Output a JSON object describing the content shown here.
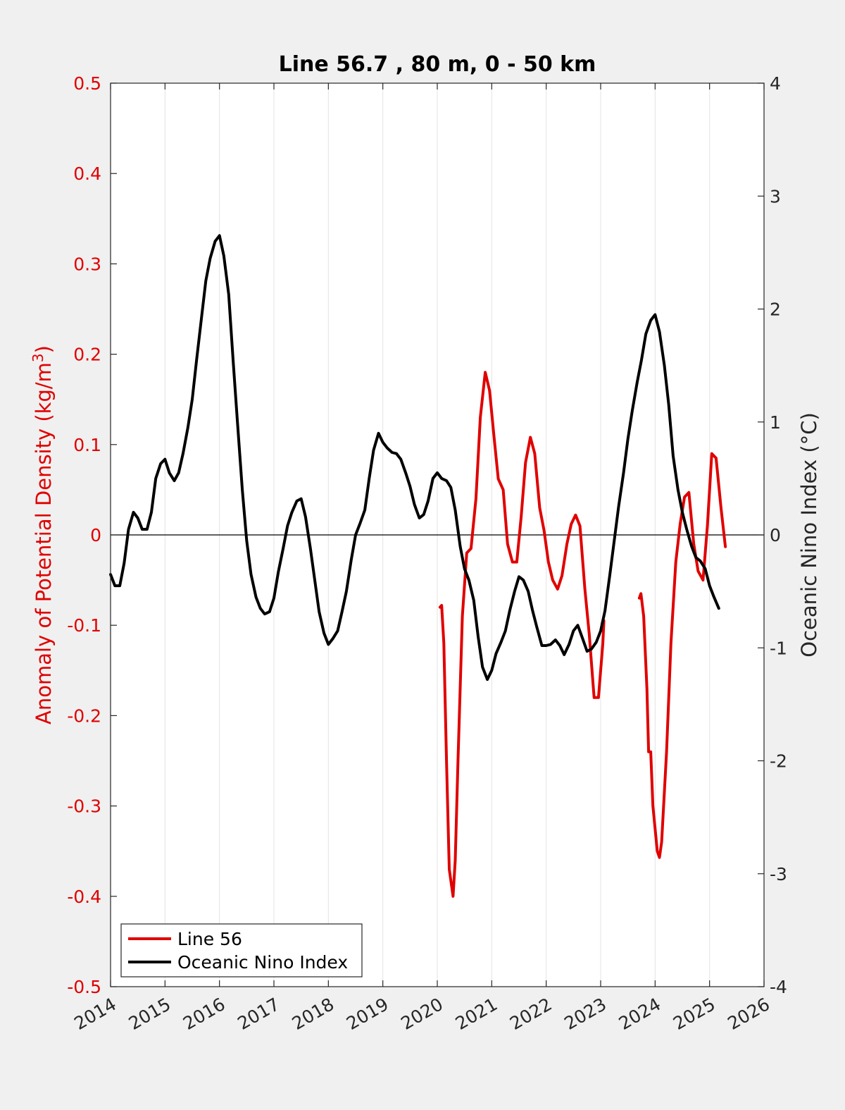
{
  "chart_data": {
    "type": "line",
    "title": "Line 56.7 , 80 m, 0 - 50 km",
    "ylabel_left": {
      "prefix": "Anomaly of Potential Density (kg/m",
      "sup": "3",
      "suffix": ")"
    },
    "ylabel_right": "Oceanic Nino Index (°C)",
    "xlim": [
      2014,
      2026
    ],
    "ylim_left": [
      -0.5,
      0.5
    ],
    "ylim_right": [
      -4,
      4
    ],
    "x_ticks": [
      2014,
      2015,
      2016,
      2017,
      2018,
      2019,
      2020,
      2021,
      2022,
      2023,
      2024,
      2025,
      2026
    ],
    "x_tick_labels": [
      "2014",
      "2015",
      "2016",
      "2017",
      "2018",
      "2019",
      "2020",
      "2021",
      "2022",
      "2023",
      "2024",
      "2025",
      "2026"
    ],
    "y_ticks_left": [
      0.5,
      0.4,
      0.3,
      0.2,
      0.1,
      0,
      -0.1,
      -0.2,
      -0.3,
      -0.4,
      -0.5
    ],
    "y_tick_labels_left": [
      "0.5",
      "0.4",
      "0.3",
      "0.2",
      "0.1",
      "0",
      "-0.1",
      "-0.2",
      "-0.3",
      "-0.4",
      "-0.5"
    ],
    "y_ticks_right": [
      4,
      3,
      2,
      1,
      0,
      -1,
      -2,
      -3,
      -4
    ],
    "y_tick_labels_right": [
      "4",
      "3",
      "2",
      "1",
      "0",
      "-1",
      "-2",
      "-3",
      "-4"
    ],
    "grid": "vertical",
    "zero_line": true,
    "legend_position": "bottom-left",
    "colors": {
      "line56": "#e00000",
      "oni": "#000000",
      "left_axis": "#e00000",
      "background": "#f0f0f0",
      "plot_bg": "#ffffff"
    },
    "series": [
      {
        "name": "Line 56",
        "axis": "left",
        "segments": [
          [
            [
              2020.05,
              -0.08
            ],
            [
              2020.08,
              -0.078
            ],
            [
              2020.12,
              -0.12
            ],
            [
              2020.17,
              -0.25
            ],
            [
              2020.22,
              -0.37
            ],
            [
              2020.29,
              -0.4
            ],
            [
              2020.33,
              -0.36
            ],
            [
              2020.38,
              -0.25
            ],
            [
              2020.46,
              -0.09
            ],
            [
              2020.54,
              -0.02
            ],
            [
              2020.62,
              -0.015
            ],
            [
              2020.71,
              0.04
            ],
            [
              2020.79,
              0.13
            ],
            [
              2020.88,
              0.18
            ],
            [
              2020.96,
              0.16
            ],
            [
              2021.04,
              0.11
            ],
            [
              2021.12,
              0.062
            ],
            [
              2021.21,
              0.05
            ],
            [
              2021.29,
              -0.01
            ],
            [
              2021.38,
              -0.03
            ],
            [
              2021.46,
              -0.03
            ],
            [
              2021.54,
              0.02
            ],
            [
              2021.62,
              0.08
            ],
            [
              2021.71,
              0.108
            ],
            [
              2021.79,
              0.09
            ],
            [
              2021.88,
              0.03
            ],
            [
              2021.96,
              0.005
            ],
            [
              2022.04,
              -0.03
            ],
            [
              2022.12,
              -0.05
            ],
            [
              2022.21,
              -0.06
            ],
            [
              2022.29,
              -0.045
            ],
            [
              2022.38,
              -0.01
            ],
            [
              2022.46,
              0.012
            ],
            [
              2022.54,
              0.022
            ],
            [
              2022.62,
              0.01
            ],
            [
              2022.71,
              -0.06
            ],
            [
              2022.79,
              -0.11
            ],
            [
              2022.88,
              -0.18
            ],
            [
              2022.96,
              -0.18
            ],
            [
              2023.04,
              -0.12
            ],
            [
              2023.06,
              -0.095
            ]
          ],
          [
            [
              2023.71,
              -0.07
            ],
            [
              2023.74,
              -0.065
            ],
            [
              2023.79,
              -0.09
            ],
            [
              2023.85,
              -0.17
            ],
            [
              2023.88,
              -0.24
            ],
            [
              2023.92,
              -0.24
            ],
            [
              2023.96,
              -0.3
            ],
            [
              2024.04,
              -0.35
            ],
            [
              2024.08,
              -0.357
            ],
            [
              2024.12,
              -0.34
            ],
            [
              2024.21,
              -0.24
            ],
            [
              2024.29,
              -0.12
            ],
            [
              2024.38,
              -0.03
            ],
            [
              2024.46,
              0.012
            ],
            [
              2024.54,
              0.042
            ],
            [
              2024.62,
              0.047
            ],
            [
              2024.71,
              -0.01
            ],
            [
              2024.79,
              -0.04
            ],
            [
              2024.88,
              -0.05
            ],
            [
              2024.96,
              0.01
            ],
            [
              2025.04,
              0.09
            ],
            [
              2025.12,
              0.085
            ],
            [
              2025.21,
              0.03
            ],
            [
              2025.29,
              -0.013
            ]
          ]
        ]
      },
      {
        "name": "Oceanic Nino Index",
        "axis": "right",
        "segments": [
          [
            [
              2014.0,
              -0.35
            ],
            [
              2014.08,
              -0.45
            ],
            [
              2014.17,
              -0.45
            ],
            [
              2014.25,
              -0.25
            ],
            [
              2014.33,
              0.05
            ],
            [
              2014.42,
              0.2
            ],
            [
              2014.5,
              0.15
            ],
            [
              2014.58,
              0.05
            ],
            [
              2014.67,
              0.05
            ],
            [
              2014.75,
              0.2
            ],
            [
              2014.83,
              0.5
            ],
            [
              2014.92,
              0.63
            ],
            [
              2015.0,
              0.67
            ],
            [
              2015.08,
              0.55
            ],
            [
              2015.17,
              0.48
            ],
            [
              2015.25,
              0.55
            ],
            [
              2015.33,
              0.72
            ],
            [
              2015.42,
              0.95
            ],
            [
              2015.5,
              1.2
            ],
            [
              2015.58,
              1.55
            ],
            [
              2015.67,
              1.92
            ],
            [
              2015.75,
              2.25
            ],
            [
              2015.83,
              2.45
            ],
            [
              2015.92,
              2.6
            ],
            [
              2016.0,
              2.65
            ],
            [
              2016.08,
              2.47
            ],
            [
              2016.17,
              2.13
            ],
            [
              2016.25,
              1.55
            ],
            [
              2016.33,
              1.0
            ],
            [
              2016.42,
              0.4
            ],
            [
              2016.5,
              -0.05
            ],
            [
              2016.58,
              -0.35
            ],
            [
              2016.67,
              -0.55
            ],
            [
              2016.75,
              -0.65
            ],
            [
              2016.83,
              -0.7
            ],
            [
              2016.92,
              -0.68
            ],
            [
              2017.0,
              -0.56
            ],
            [
              2017.08,
              -0.33
            ],
            [
              2017.17,
              -0.12
            ],
            [
              2017.25,
              0.08
            ],
            [
              2017.33,
              0.2
            ],
            [
              2017.42,
              0.3
            ],
            [
              2017.5,
              0.32
            ],
            [
              2017.58,
              0.16
            ],
            [
              2017.67,
              -0.12
            ],
            [
              2017.75,
              -0.4
            ],
            [
              2017.83,
              -0.68
            ],
            [
              2017.92,
              -0.87
            ],
            [
              2018.0,
              -0.97
            ],
            [
              2018.08,
              -0.92
            ],
            [
              2018.17,
              -0.85
            ],
            [
              2018.25,
              -0.68
            ],
            [
              2018.33,
              -0.5
            ],
            [
              2018.42,
              -0.22
            ],
            [
              2018.5,
              0.0
            ],
            [
              2018.58,
              0.1
            ],
            [
              2018.67,
              0.22
            ],
            [
              2018.75,
              0.5
            ],
            [
              2018.83,
              0.75
            ],
            [
              2018.92,
              0.9
            ],
            [
              2019.0,
              0.82
            ],
            [
              2019.08,
              0.77
            ],
            [
              2019.17,
              0.73
            ],
            [
              2019.25,
              0.72
            ],
            [
              2019.33,
              0.67
            ],
            [
              2019.42,
              0.55
            ],
            [
              2019.5,
              0.43
            ],
            [
              2019.58,
              0.27
            ],
            [
              2019.67,
              0.15
            ],
            [
              2019.75,
              0.18
            ],
            [
              2019.83,
              0.3
            ],
            [
              2019.92,
              0.5
            ],
            [
              2020.0,
              0.55
            ],
            [
              2020.08,
              0.5
            ],
            [
              2020.17,
              0.48
            ],
            [
              2020.25,
              0.42
            ],
            [
              2020.33,
              0.22
            ],
            [
              2020.42,
              -0.1
            ],
            [
              2020.5,
              -0.3
            ],
            [
              2020.58,
              -0.4
            ],
            [
              2020.67,
              -0.58
            ],
            [
              2020.75,
              -0.9
            ],
            [
              2020.83,
              -1.17
            ],
            [
              2020.92,
              -1.28
            ],
            [
              2021.0,
              -1.2
            ],
            [
              2021.08,
              -1.05
            ],
            [
              2021.17,
              -0.95
            ],
            [
              2021.25,
              -0.85
            ],
            [
              2021.33,
              -0.67
            ],
            [
              2021.42,
              -0.5
            ],
            [
              2021.5,
              -0.37
            ],
            [
              2021.58,
              -0.4
            ],
            [
              2021.67,
              -0.5
            ],
            [
              2021.75,
              -0.67
            ],
            [
              2021.83,
              -0.82
            ],
            [
              2021.92,
              -0.98
            ],
            [
              2022.0,
              -0.98
            ],
            [
              2022.08,
              -0.97
            ],
            [
              2022.17,
              -0.93
            ],
            [
              2022.25,
              -0.98
            ],
            [
              2022.33,
              -1.06
            ],
            [
              2022.42,
              -0.97
            ],
            [
              2022.5,
              -0.85
            ],
            [
              2022.58,
              -0.8
            ],
            [
              2022.67,
              -0.92
            ],
            [
              2022.75,
              -1.03
            ],
            [
              2022.83,
              -1.01
            ],
            [
              2022.92,
              -0.95
            ],
            [
              2023.0,
              -0.85
            ],
            [
              2023.08,
              -0.67
            ],
            [
              2023.17,
              -0.35
            ],
            [
              2023.25,
              -0.05
            ],
            [
              2023.33,
              0.25
            ],
            [
              2023.42,
              0.55
            ],
            [
              2023.5,
              0.85
            ],
            [
              2023.58,
              1.1
            ],
            [
              2023.67,
              1.35
            ],
            [
              2023.75,
              1.55
            ],
            [
              2023.83,
              1.78
            ],
            [
              2023.92,
              1.9
            ],
            [
              2024.0,
              1.95
            ],
            [
              2024.08,
              1.8
            ],
            [
              2024.17,
              1.5
            ],
            [
              2024.25,
              1.15
            ],
            [
              2024.33,
              0.7
            ],
            [
              2024.42,
              0.4
            ],
            [
              2024.5,
              0.2
            ],
            [
              2024.58,
              0.05
            ],
            [
              2024.67,
              -0.1
            ],
            [
              2024.75,
              -0.2
            ],
            [
              2024.83,
              -0.23
            ],
            [
              2024.92,
              -0.3
            ],
            [
              2025.0,
              -0.45
            ],
            [
              2025.08,
              -0.55
            ],
            [
              2025.17,
              -0.65
            ]
          ]
        ]
      }
    ]
  }
}
